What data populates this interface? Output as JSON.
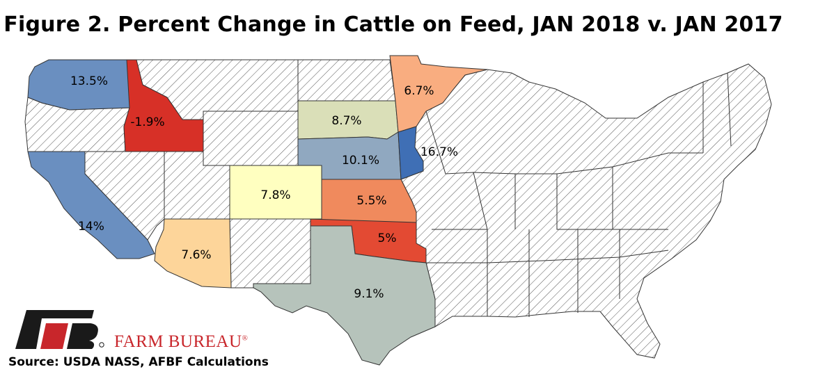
{
  "title": "Figure 2. Percent Change in Cattle on Feed, JAN 2018 v. JAN 2017",
  "source": "Source: USDA NASS, AFBF Calculations",
  "logo": {
    "name": "FARM BUREAU",
    "mark": "®"
  },
  "colors": {
    "hatch_line": "#555555",
    "no_data_fill": "#ffffff",
    "logo_red": "#c8262b",
    "logo_black": "#1a1a1a"
  },
  "states": [
    {
      "id": "WA",
      "label": "13.5%",
      "value": 13.5,
      "color": "#6a8fc0"
    },
    {
      "id": "ID",
      "label": "-1.9%",
      "value": -1.9,
      "color": "#d73027"
    },
    {
      "id": "CA",
      "label": "14%",
      "value": 14,
      "color": "#6a8fc0"
    },
    {
      "id": "AZ",
      "label": "7.6%",
      "value": 7.6,
      "color": "#fdd59a"
    },
    {
      "id": "CO",
      "label": "7.8%",
      "value": 7.8,
      "color": "#ffffc0"
    },
    {
      "id": "SD",
      "label": "8.7%",
      "value": 8.7,
      "color": "#dadfb8"
    },
    {
      "id": "NE",
      "label": "10.1%",
      "value": 10.1,
      "color": "#90a8c0"
    },
    {
      "id": "KS",
      "label": "5.5%",
      "value": 5.5,
      "color": "#f08a5d"
    },
    {
      "id": "OK",
      "label": "5%",
      "value": 5,
      "color": "#e34a33"
    },
    {
      "id": "TX",
      "label": "9.1%",
      "value": 9.1,
      "color": "#b6c3bb"
    },
    {
      "id": "MN",
      "label": "6.7%",
      "value": 6.7,
      "color": "#f9ad80"
    },
    {
      "id": "IA",
      "label": "16.7%",
      "value": 16.7,
      "color": "#3f6fb5"
    }
  ]
}
